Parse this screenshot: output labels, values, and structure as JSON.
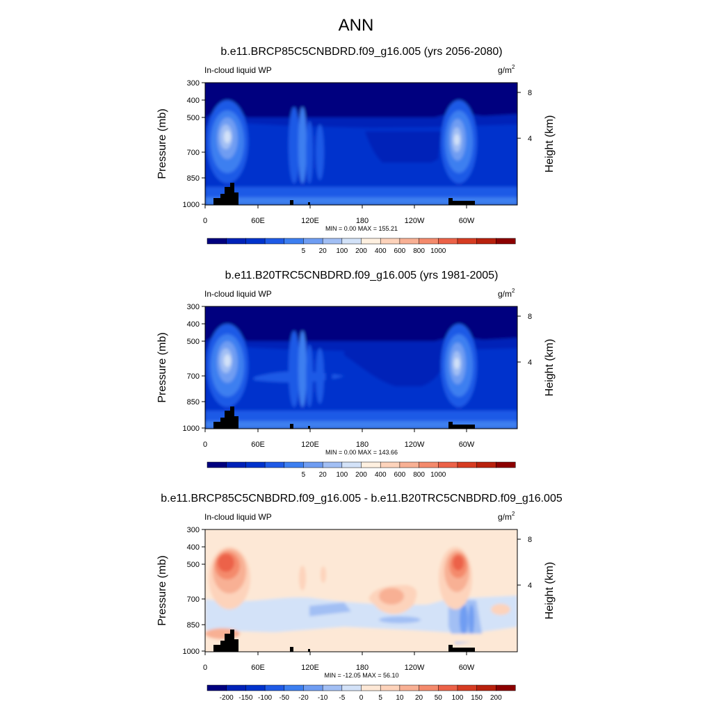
{
  "main_title": "ANN",
  "chart_data": [
    {
      "type": "heatmap",
      "title": "b.e11.BRCP85C5CNBDRD.f09_g16.005 (yrs 2056-2080)",
      "subtitle_left": "In-cloud liquid WP",
      "units": "g/m",
      "units_sup": "2",
      "ylabel": "Pressure (mb)",
      "ylabel_right": "Height (km)",
      "xticks": [
        "0",
        "60E",
        "120E",
        "180",
        "120W",
        "60W"
      ],
      "yticks": [
        "300",
        "400",
        "500",
        "700",
        "850",
        "1000"
      ],
      "yticks_right": [
        "8",
        "4"
      ],
      "min_value": "0.00",
      "max_value": "155.21",
      "stats_text": "MIN =   0.00  MAX = 155.21",
      "colorbar_labels": [
        "5",
        "20",
        "100",
        "200",
        "400",
        "600",
        "800",
        "1000"
      ],
      "colorbar_colors": [
        "#00007f",
        "#0022b8",
        "#0033cc",
        "#1f5ae6",
        "#3d7ff0",
        "#6f9df2",
        "#a2bff4",
        "#d3e2f8",
        "#fff0e0",
        "#fdd3bb",
        "#f8b094",
        "#f48a6c",
        "#ec6248",
        "#d63c22",
        "#b8210d",
        "#8c0000"
      ],
      "profile": "rcp"
    },
    {
      "type": "heatmap",
      "title": "b.e11.B20TRC5CNBDRD.f09_g16.005 (yrs 1981-2005)",
      "subtitle_left": "In-cloud liquid WP",
      "units": "g/m",
      "units_sup": "2",
      "ylabel": "Pressure (mb)",
      "ylabel_right": "Height (km)",
      "xticks": [
        "0",
        "60E",
        "120E",
        "180",
        "120W",
        "60W"
      ],
      "yticks": [
        "300",
        "400",
        "500",
        "700",
        "850",
        "1000"
      ],
      "yticks_right": [
        "8",
        "4"
      ],
      "min_value": "0.00",
      "max_value": "143.66",
      "stats_text": "MIN =   0.00  MAX = 143.66",
      "colorbar_labels": [
        "5",
        "20",
        "100",
        "200",
        "400",
        "600",
        "800",
        "1000"
      ],
      "colorbar_colors": [
        "#00007f",
        "#0022b8",
        "#0033cc",
        "#1f5ae6",
        "#3d7ff0",
        "#6f9df2",
        "#a2bff4",
        "#d3e2f8",
        "#fff0e0",
        "#fdd3bb",
        "#f8b094",
        "#f48a6c",
        "#ec6248",
        "#d63c22",
        "#b8210d",
        "#8c0000"
      ],
      "profile": "hist"
    },
    {
      "type": "heatmap",
      "title": "b.e11.BRCP85C5CNBDRD.f09_g16.005 - b.e11.B20TRC5CNBDRD.f09_g16.005",
      "subtitle_left": "In-cloud liquid WP",
      "units": "g/m",
      "units_sup": "2",
      "ylabel": "Pressure (mb)",
      "ylabel_right": "Height (km)",
      "xticks": [
        "0",
        "60E",
        "120E",
        "180",
        "120W",
        "60W"
      ],
      "yticks": [
        "300",
        "400",
        "500",
        "700",
        "850",
        "1000"
      ],
      "yticks_right": [
        "8",
        "4"
      ],
      "min_value": "-12.05",
      "max_value": "56.10",
      "stats_text": "MIN = -12.05  MAX =  56.10",
      "colorbar_labels": [
        "-200",
        "-150",
        "-100",
        "-50",
        "-20",
        "-10",
        "-5",
        "0",
        "5",
        "10",
        "20",
        "50",
        "100",
        "150",
        "200"
      ],
      "colorbar_colors": [
        "#00007f",
        "#0022b8",
        "#0033cc",
        "#1f5ae6",
        "#3d7ff0",
        "#6f9df2",
        "#a2bff4",
        "#d3e2f8",
        "#fde8d6",
        "#fdd3bb",
        "#f8b094",
        "#f48a6c",
        "#ec6248",
        "#d63c22",
        "#b8210d",
        "#8c0000"
      ],
      "profile": "diff"
    }
  ]
}
